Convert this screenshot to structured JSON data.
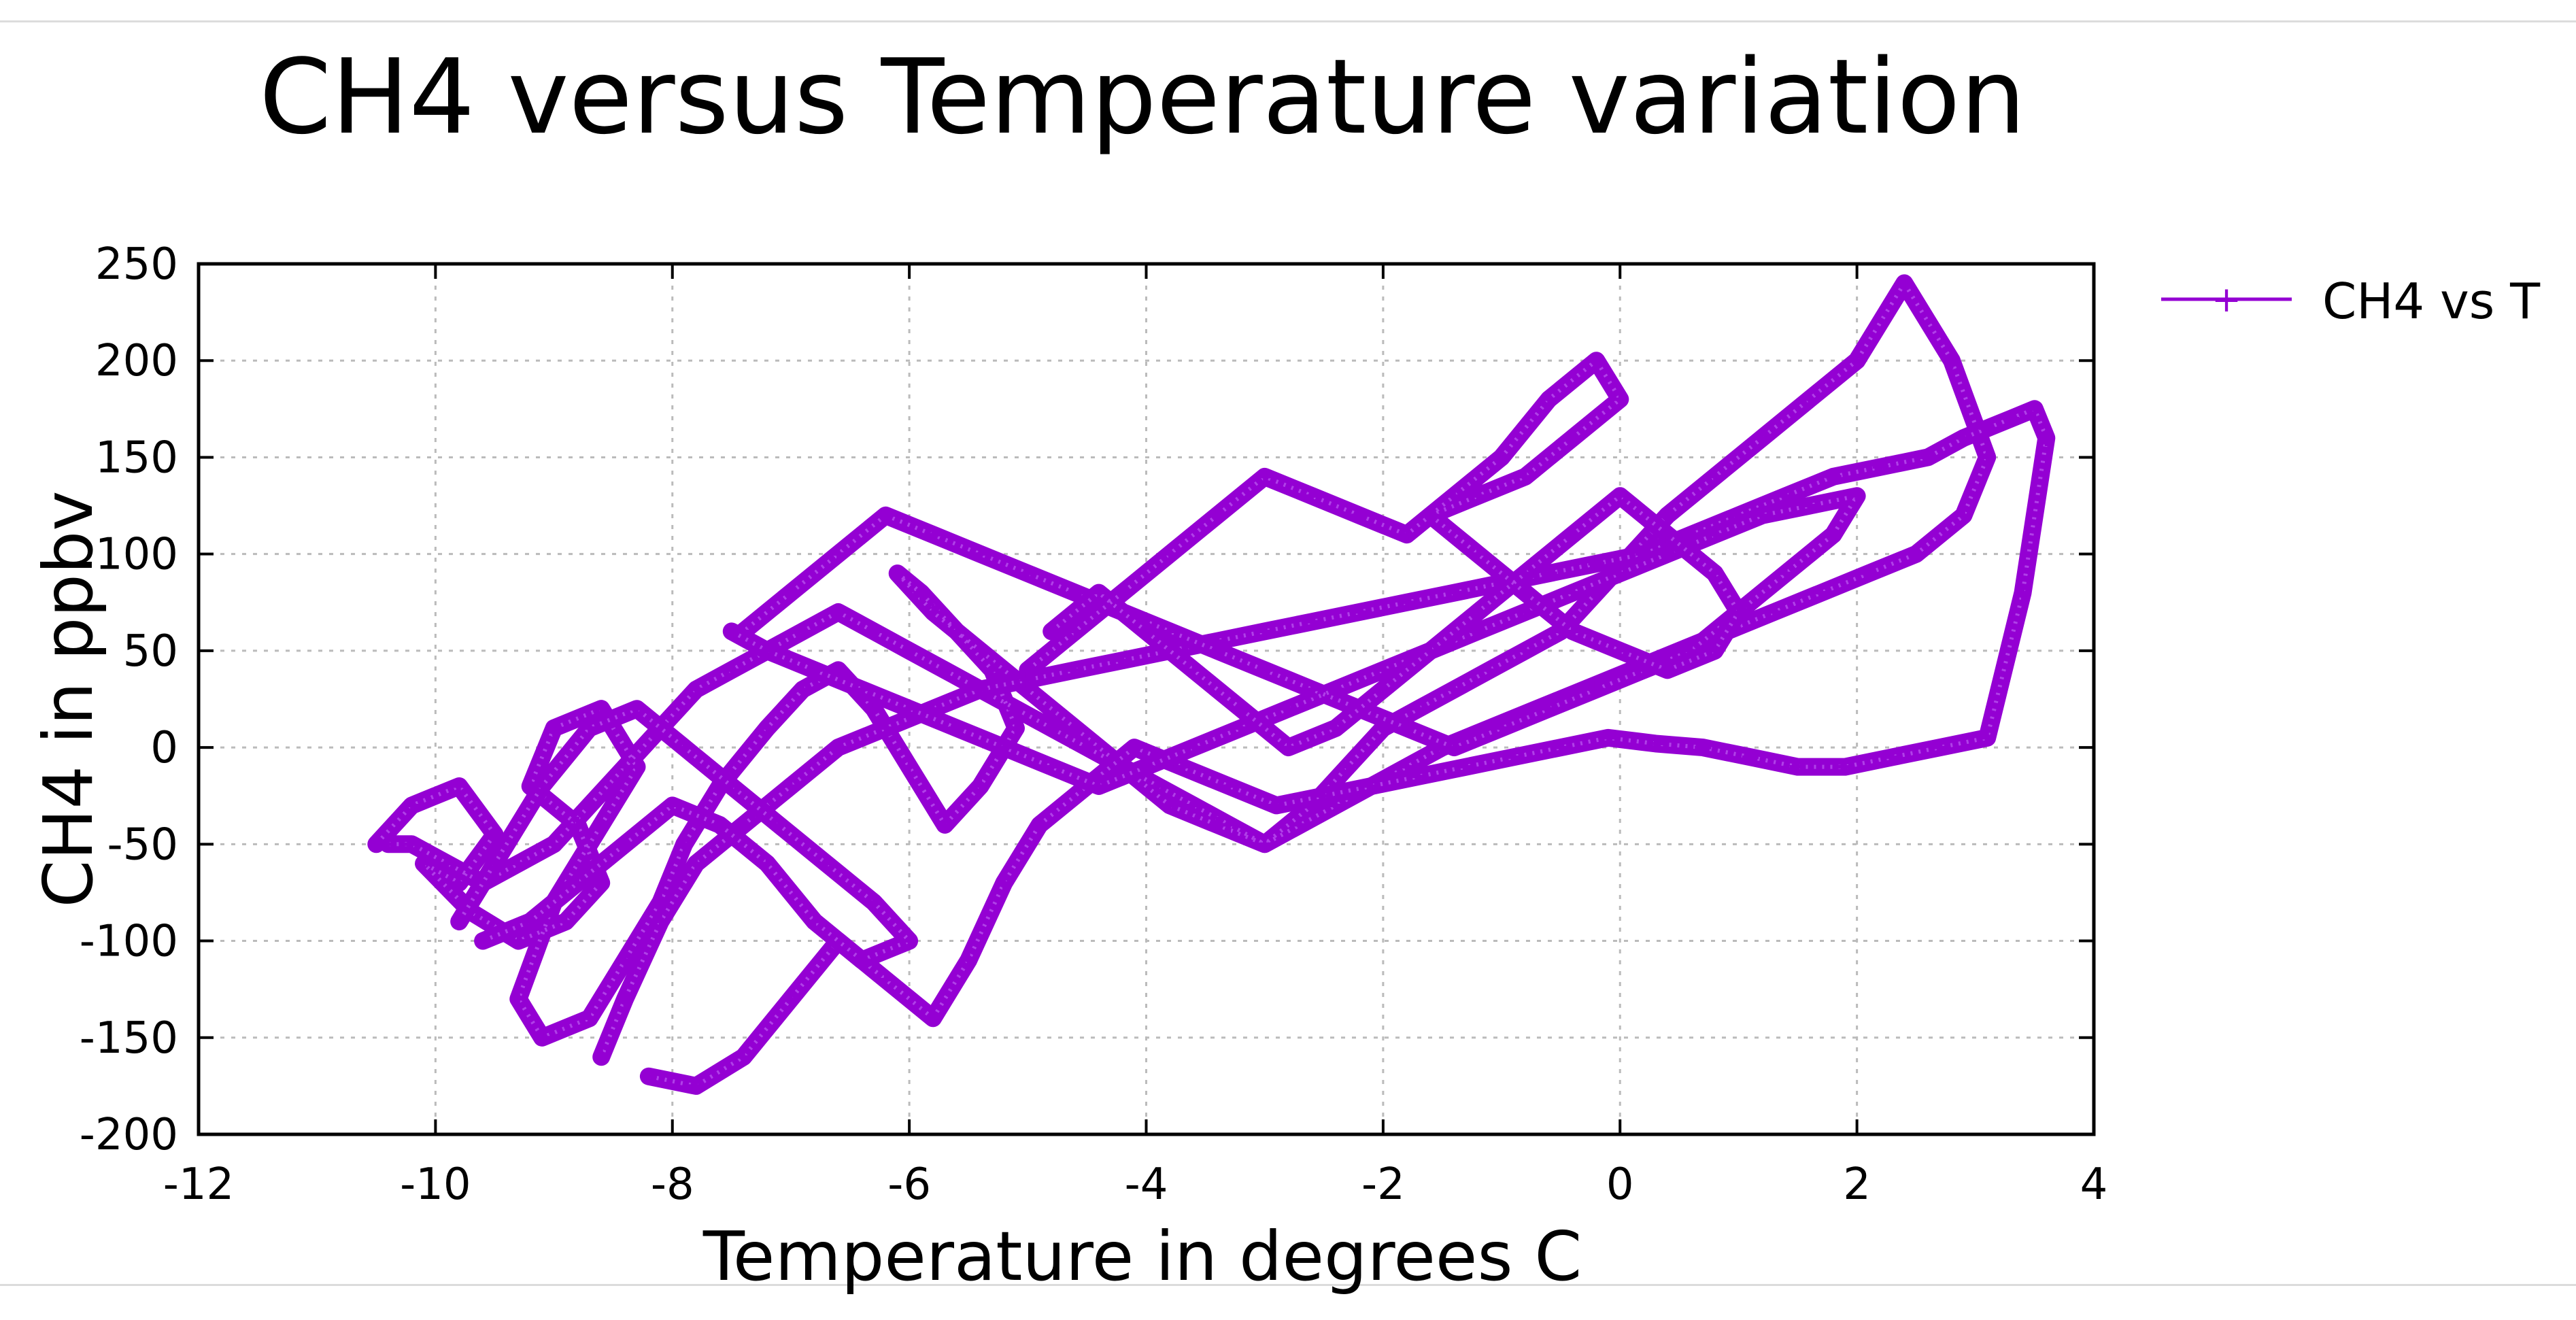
{
  "chart_data": {
    "type": "line",
    "title": "CH4 versus Temperature variation",
    "xlabel": "Temperature in degrees C",
    "ylabel": "CH4 in ppbv",
    "xlim": [
      -12,
      4
    ],
    "ylim": [
      -200,
      250
    ],
    "xticks": [
      "-12",
      "-10",
      "-8",
      "-6",
      "-4",
      "-2",
      "0",
      "2",
      "4"
    ],
    "yticks": [
      "250",
      "200",
      "150",
      "100",
      "50",
      "0",
      "-50",
      "-100",
      "-150",
      "-200"
    ],
    "grid": true,
    "legend_position": "top-right, outside plot",
    "series": [
      {
        "name": "CH4 vs T",
        "color": "#9400d3",
        "marker": "plus",
        "x": [
          -10.5,
          -10.2,
          -9.8,
          -9.5,
          -9.8,
          -10.1,
          -9.7,
          -9.3,
          -8.9,
          -8.6,
          -8.8,
          -9.2,
          -9.0,
          -8.6,
          -8.3,
          -8.6,
          -9.0,
          -9.3,
          -9.1,
          -8.7,
          -8.4,
          -8.1,
          -7.9,
          -7.6,
          -7.2,
          -6.9,
          -6.6,
          -6.3,
          -6.0,
          -5.7,
          -5.4,
          -5.1,
          -5.3,
          -5.6,
          -5.9,
          -6.1,
          -5.8,
          -5.4,
          -5.0,
          -4.6,
          -4.2,
          -3.8,
          -3.4,
          -3.0,
          -2.6,
          -2.3,
          -2.0,
          -1.7,
          -1.4,
          -1.1,
          -0.8,
          -0.5,
          -0.2,
          0.1,
          0.4,
          0.8,
          1.2,
          1.6,
          2.0,
          2.4,
          2.8,
          3.1,
          2.9,
          2.5,
          2.1,
          1.7,
          1.3,
          0.9,
          0.5,
          0.1,
          -0.3,
          -0.7,
          -1.1,
          -1.5,
          -1.8,
          -2.1,
          -2.4,
          -2.7,
          -3.0,
          -3.3,
          -3.6,
          -3.9,
          -4.2,
          -4.5,
          -4.8,
          -5.1,
          -5.4,
          -5.7,
          -6.0,
          -6.3,
          -6.6,
          -6.9,
          -7.2,
          -7.5,
          -7.8,
          -8.1,
          -8.4,
          -8.7,
          -9.0,
          -9.3,
          -9.6,
          -9.9,
          -10.2,
          -10.4
        ],
        "y": [
          -50,
          -30,
          -20,
          -45,
          -70,
          -60,
          -85,
          -100,
          -90,
          -70,
          -40,
          -20,
          10,
          20,
          -10,
          -40,
          -80,
          -130,
          -150,
          -140,
          -110,
          -80,
          -50,
          -20,
          10,
          30,
          40,
          20,
          -10,
          -40,
          -20,
          10,
          40,
          60,
          80,
          90,
          70,
          50,
          30,
          10,
          -10,
          -30,
          -40,
          -50,
          -30,
          -10,
          10,
          20,
          30,
          40,
          50,
          60,
          80,
          100,
          120,
          140,
          160,
          180,
          200,
          240,
          200,
          150,
          120,
          100,
          90,
          80,
          70,
          60,
          50,
          40,
          30,
          20,
          10,
          0,
          -10,
          -20,
          -30,
          -40,
          -50,
          -40,
          -30,
          -20,
          -10,
          0,
          10,
          20,
          30,
          40,
          50,
          60,
          70,
          60,
          50,
          40,
          30,
          10,
          -10,
          -30,
          -50,
          -60,
          -70,
          -60,
          -50,
          -50
        ]
      },
      {
        "name": "",
        "color": "#9400d3",
        "marker": "plus",
        "x": [
          -8.2,
          -7.8,
          -7.4,
          -7.0,
          -6.6,
          -6.2,
          -5.8,
          -5.5,
          -5.2,
          -4.9,
          -4.5,
          -4.1,
          -3.7,
          -3.3,
          -2.9,
          -2.5,
          -2.1,
          -1.7,
          -1.3,
          -0.9,
          -0.5,
          -0.1,
          0.3,
          0.7,
          1.1,
          1.5,
          1.9,
          2.3,
          2.7,
          3.1,
          3.4,
          3.6,
          3.5,
          3.3,
          3.1,
          2.9,
          2.6,
          2.2,
          1.8,
          1.4,
          1.0,
          0.6,
          0.2,
          -0.2,
          -0.6,
          -1.0,
          -1.4,
          -1.8,
          -2.2,
          -2.6,
          -3.0,
          -3.4,
          -3.8,
          -4.2,
          -4.6,
          -5.0,
          -5.4,
          -5.8,
          -6.2,
          -6.6,
          -7.0,
          -7.4,
          -7.8,
          -8.1,
          -8.4,
          -8.6
        ],
        "y": [
          -170,
          -175,
          -160,
          -130,
          -100,
          -120,
          -140,
          -110,
          -70,
          -40,
          -20,
          0,
          -10,
          -20,
          -30,
          -25,
          -20,
          -15,
          -10,
          -5,
          0,
          5,
          2,
          0,
          -5,
          -10,
          -10,
          -5,
          0,
          5,
          80,
          160,
          175,
          170,
          165,
          160,
          150,
          145,
          140,
          130,
          120,
          110,
          100,
          95,
          90,
          85,
          80,
          75,
          70,
          65,
          60,
          55,
          50,
          45,
          40,
          35,
          30,
          20,
          10,
          0,
          -20,
          -40,
          -60,
          -90,
          -130,
          -160
        ]
      },
      {
        "name": "",
        "color": "#9400d3",
        "marker": "plus",
        "x": [
          -7.5,
          -7.2,
          -6.8,
          -6.4,
          -6.0,
          -5.6,
          -5.2,
          -4.8,
          -4.4,
          -4.0,
          -3.6,
          -3.2,
          -2.8,
          -2.4,
          -2.0,
          -1.6,
          -1.2,
          -0.8,
          -0.4,
          0.0,
          0.4,
          0.8,
          1.2,
          1.6,
          2.0,
          1.8,
          1.4,
          1.0,
          0.6,
          0.2,
          -0.2,
          -0.6,
          -1.0,
          -1.4,
          -1.8,
          -2.2,
          -2.6,
          -3.0,
          -3.4,
          -3.8,
          -4.2,
          -4.6,
          -5.0,
          -5.4,
          -5.8,
          -6.2,
          -6.6,
          -7.0,
          -7.4
        ],
        "y": [
          60,
          50,
          40,
          30,
          20,
          10,
          0,
          -10,
          -20,
          -10,
          0,
          10,
          20,
          30,
          40,
          50,
          60,
          70,
          80,
          90,
          100,
          110,
          120,
          125,
          130,
          110,
          90,
          70,
          50,
          40,
          30,
          20,
          10,
          0,
          10,
          20,
          30,
          40,
          50,
          60,
          70,
          80,
          90,
          100,
          110,
          120,
          100,
          80,
          60
        ]
      },
      {
        "name": "",
        "color": "#9400d3",
        "marker": "plus",
        "x": [
          -5.0,
          -4.6,
          -4.2,
          -3.8,
          -3.4,
          -3.0,
          -2.6,
          -2.2,
          -1.8,
          -1.4,
          -1.0,
          -0.6,
          -0.2,
          0.0,
          -0.4,
          -0.8,
          -1.2,
          -1.6,
          -1.2,
          -0.8,
          -0.4,
          0.0,
          0.4,
          0.8,
          1.0,
          0.8,
          0.4,
          0.0,
          -0.4,
          -0.8,
          -1.2,
          -1.6,
          -2.0,
          -2.4,
          -2.8,
          -3.2,
          -3.6,
          -4.0,
          -4.4,
          -4.8
        ],
        "y": [
          40,
          60,
          80,
          100,
          120,
          140,
          130,
          120,
          110,
          130,
          150,
          180,
          200,
          180,
          160,
          140,
          130,
          120,
          100,
          80,
          60,
          50,
          40,
          50,
          70,
          90,
          110,
          130,
          110,
          90,
          70,
          50,
          30,
          10,
          0,
          20,
          40,
          60,
          80,
          60
        ]
      },
      {
        "name": "",
        "color": "#9400d3",
        "marker": "plus",
        "x": [
          -9.6,
          -9.2,
          -8.8,
          -8.4,
          -8.0,
          -7.6,
          -7.2,
          -6.8,
          -6.4,
          -6.0,
          -6.3,
          -6.7,
          -7.1,
          -7.5,
          -7.9,
          -8.3,
          -8.7,
          -9.1,
          -9.5,
          -9.8
        ],
        "y": [
          -100,
          -90,
          -70,
          -50,
          -30,
          -40,
          -60,
          -90,
          -110,
          -100,
          -80,
          -60,
          -40,
          -20,
          0,
          20,
          10,
          -20,
          -60,
          -90
        ]
      }
    ]
  }
}
